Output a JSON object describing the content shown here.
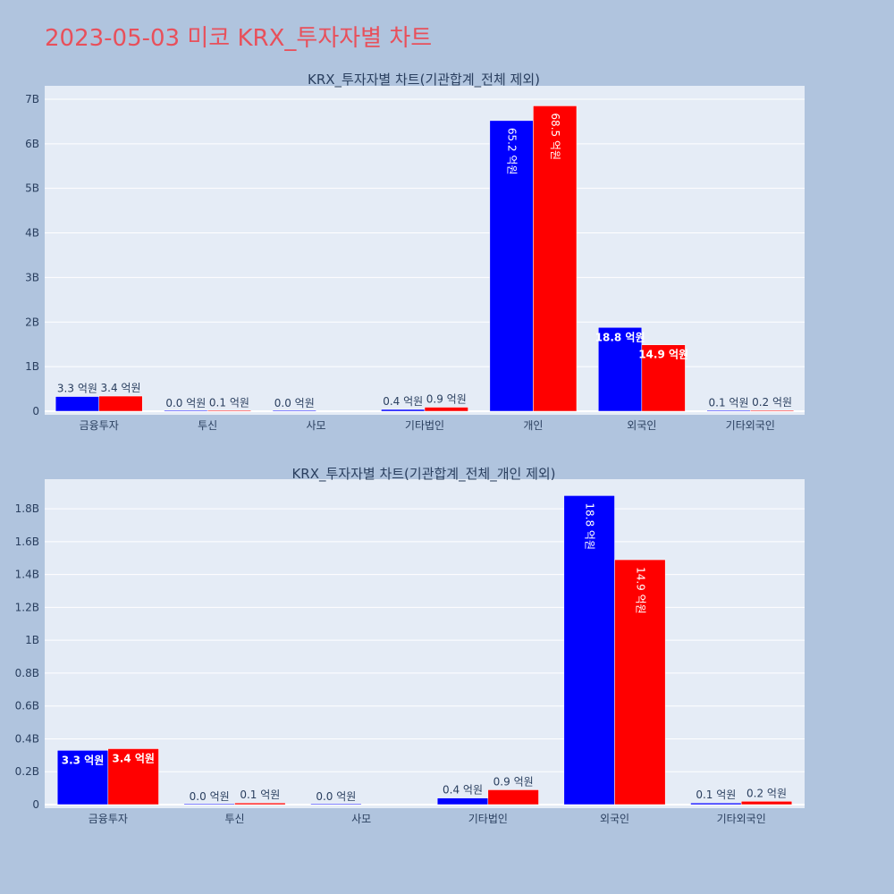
{
  "page": {
    "title": "2023-05-03 미코 KRX_투자자별 차트"
  },
  "colors": {
    "background": "#b0c4de",
    "plot_bg": "#e5ecf6",
    "series_a": "#0000ff",
    "series_b": "#ff0000",
    "title": "#e8505b",
    "text": "#2a3f5f"
  },
  "chart_data": [
    {
      "type": "bar",
      "title": "KRX_투자자별 차트(기관합계_전체 제외)",
      "categories": [
        "금융투자",
        "투신",
        "사모",
        "기타법인",
        "개인",
        "외국인",
        "기타외국인"
      ],
      "series": [
        {
          "values": [
            330000000,
            1000000,
            1000000,
            40000000,
            6520000000,
            1880000000,
            10000000
          ],
          "labels": [
            "3.3 억원",
            "0.0 억원",
            "0.0 억원",
            "0.4 억원",
            "65.2 억원",
            "18.8 억원",
            "0.1 억원"
          ]
        },
        {
          "values": [
            340000000,
            10000000,
            null,
            90000000,
            6850000000,
            1490000000,
            20000000
          ],
          "labels": [
            "3.4 억원",
            "0.1 억원",
            "",
            "0.9 억원",
            "68.5 억원",
            "14.9 억원",
            "0.2 억원"
          ]
        }
      ],
      "yticks": [
        0,
        1000000000,
        2000000000,
        3000000000,
        4000000000,
        5000000000,
        6000000000,
        7000000000
      ],
      "ytick_labels": [
        "0",
        "1B",
        "2B",
        "3B",
        "4B",
        "5B",
        "6B",
        "7B"
      ],
      "ylim": [
        0,
        7300000000
      ],
      "grid": true,
      "legend": "none"
    },
    {
      "type": "bar",
      "title": "KRX_투자자별 차트(기관합계_전체_개인 제외)",
      "categories": [
        "금융투자",
        "투신",
        "사모",
        "기타법인",
        "외국인",
        "기타외국인"
      ],
      "series": [
        {
          "values": [
            330000000,
            1000000,
            1000000,
            40000000,
            1880000000,
            10000000
          ],
          "labels": [
            "3.3 억원",
            "0.0 억원",
            "0.0 억원",
            "0.4 억원",
            "18.8 억원",
            "0.1 억원"
          ]
        },
        {
          "values": [
            340000000,
            10000000,
            null,
            90000000,
            1490000000,
            20000000
          ],
          "labels": [
            "3.4 억원",
            "0.1 억원",
            "",
            "0.9 억원",
            "14.9 억원",
            "0.2 억원"
          ]
        }
      ],
      "yticks": [
        0,
        200000000,
        400000000,
        600000000,
        800000000,
        1000000000,
        1200000000,
        1400000000,
        1600000000,
        1800000000
      ],
      "ytick_labels": [
        "0",
        "0.2B",
        "0.4B",
        "0.6B",
        "0.8B",
        "1B",
        "1.2B",
        "1.4B",
        "1.6B",
        "1.8B"
      ],
      "ylim": [
        0,
        1980000000
      ],
      "grid": true,
      "legend": "none"
    }
  ]
}
